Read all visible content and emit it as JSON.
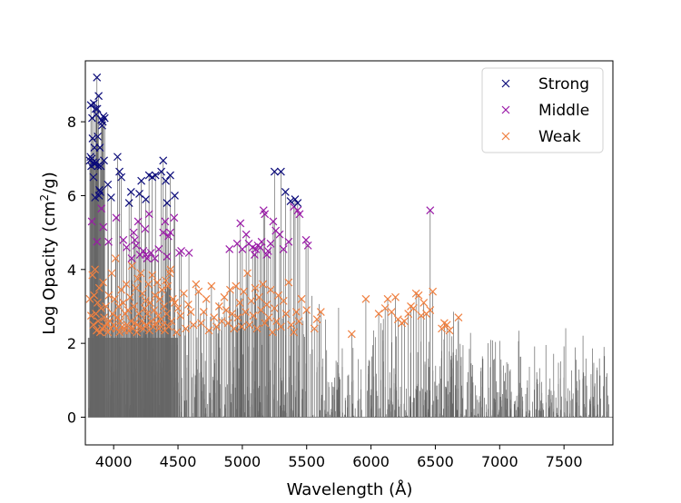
{
  "chart_data": {
    "type": "scatter",
    "title": "",
    "xlabel": "Wavelength (Å)",
    "ylabel_main": "Log Opacity (cm",
    "ylabel_sup": "2",
    "ylabel_tail": "/g)",
    "xlim": [
      3780,
      7880
    ],
    "ylim": [
      -0.75,
      9.65
    ],
    "xticks": [
      4000,
      4500,
      5000,
      5500,
      6000,
      6500,
      7000,
      7500
    ],
    "yticks": [
      0,
      2,
      4,
      6,
      8
    ],
    "legend_position": "top-right",
    "colors": {
      "strong": "#0b0b7a",
      "middle": "#9a1aa8",
      "weak": "#f08040",
      "lines": "#666666",
      "frame": "#000000"
    },
    "background_lines": {
      "description": "dense vertical gray line forest from 0 up to each line's opacity",
      "x_range": [
        3800,
        7850
      ],
      "count": 900
    },
    "series": [
      {
        "name": "Strong",
        "key": "strong",
        "marker": "x",
        "points": [
          [
            3815,
            6.95
          ],
          [
            3820,
            7.05
          ],
          [
            3823,
            8.45
          ],
          [
            3826,
            6.8
          ],
          [
            3830,
            7.0
          ],
          [
            3833,
            8.1
          ],
          [
            3836,
            7.55
          ],
          [
            3840,
            6.9
          ],
          [
            3843,
            6.5
          ],
          [
            3846,
            8.5
          ],
          [
            3850,
            7.3
          ],
          [
            3853,
            6.85
          ],
          [
            3856,
            5.95
          ],
          [
            3860,
            8.35
          ],
          [
            3863,
            6.9
          ],
          [
            3866,
            8.2
          ],
          [
            3870,
            9.2
          ],
          [
            3873,
            8.35
          ],
          [
            3876,
            7.6
          ],
          [
            3879,
            6.8
          ],
          [
            3883,
            8.7
          ],
          [
            3886,
            6.0
          ],
          [
            3889,
            6.15
          ],
          [
            3893,
            7.3
          ],
          [
            3896,
            6.1
          ],
          [
            3900,
            6.8
          ],
          [
            3905,
            8.05
          ],
          [
            3910,
            7.9
          ],
          [
            3915,
            8.0
          ],
          [
            3920,
            8.15
          ],
          [
            3925,
            6.95
          ],
          [
            3930,
            8.1
          ],
          [
            3955,
            6.3
          ],
          [
            3980,
            5.95
          ],
          [
            4030,
            7.05
          ],
          [
            4045,
            6.65
          ],
          [
            4060,
            6.5
          ],
          [
            4120,
            5.8
          ],
          [
            4135,
            6.1
          ],
          [
            4200,
            6.05
          ],
          [
            4215,
            6.4
          ],
          [
            4250,
            5.9
          ],
          [
            4275,
            6.55
          ],
          [
            4300,
            6.5
          ],
          [
            4325,
            6.55
          ],
          [
            4370,
            6.65
          ],
          [
            4385,
            6.95
          ],
          [
            4405,
            6.4
          ],
          [
            4415,
            5.8
          ],
          [
            4440,
            6.55
          ],
          [
            4475,
            6.0
          ],
          [
            5250,
            6.65
          ],
          [
            5300,
            6.65
          ],
          [
            5335,
            6.1
          ],
          [
            5375,
            5.85
          ],
          [
            5410,
            5.9
          ],
          [
            5430,
            5.8
          ]
        ]
      },
      {
        "name": "Middle",
        "key": "middle",
        "marker": "x",
        "points": [
          [
            3830,
            5.3
          ],
          [
            3870,
            4.75
          ],
          [
            3905,
            5.65
          ],
          [
            3920,
            5.15
          ],
          [
            3960,
            4.75
          ],
          [
            4020,
            5.4
          ],
          [
            4075,
            4.8
          ],
          [
            4100,
            4.6
          ],
          [
            4140,
            4.3
          ],
          [
            4155,
            5.0
          ],
          [
            4165,
            4.8
          ],
          [
            4175,
            4.65
          ],
          [
            4190,
            5.3
          ],
          [
            4205,
            4.4
          ],
          [
            4230,
            4.5
          ],
          [
            4245,
            5.1
          ],
          [
            4250,
            4.4
          ],
          [
            4260,
            4.3
          ],
          [
            4275,
            5.5
          ],
          [
            4290,
            4.45
          ],
          [
            4320,
            4.3
          ],
          [
            4350,
            4.55
          ],
          [
            4385,
            5.0
          ],
          [
            4400,
            5.3
          ],
          [
            4415,
            4.35
          ],
          [
            4425,
            4.9
          ],
          [
            4440,
            5.0
          ],
          [
            4470,
            5.4
          ],
          [
            4510,
            4.45
          ],
          [
            4525,
            4.5
          ],
          [
            4585,
            4.45
          ],
          [
            4900,
            4.55
          ],
          [
            4960,
            4.7
          ],
          [
            4985,
            5.25
          ],
          [
            5000,
            4.55
          ],
          [
            5030,
            4.95
          ],
          [
            5050,
            4.7
          ],
          [
            5080,
            4.6
          ],
          [
            5095,
            4.4
          ],
          [
            5105,
            4.55
          ],
          [
            5120,
            4.65
          ],
          [
            5140,
            4.6
          ],
          [
            5150,
            4.75
          ],
          [
            5165,
            5.6
          ],
          [
            5175,
            5.5
          ],
          [
            5190,
            4.4
          ],
          [
            5200,
            4.5
          ],
          [
            5220,
            4.7
          ],
          [
            5240,
            5.3
          ],
          [
            5260,
            5.05
          ],
          [
            5290,
            4.95
          ],
          [
            5320,
            4.55
          ],
          [
            5360,
            4.75
          ],
          [
            5400,
            5.7
          ],
          [
            5430,
            5.6
          ],
          [
            5445,
            5.5
          ],
          [
            5495,
            4.8
          ],
          [
            5510,
            4.65
          ],
          [
            6460,
            5.6
          ]
        ]
      },
      {
        "name": "Weak",
        "key": "weak",
        "marker": "x",
        "points": [
          [
            3815,
            3.2
          ],
          [
            3825,
            2.75
          ],
          [
            3835,
            3.85
          ],
          [
            3842,
            2.5
          ],
          [
            3848,
            3.3
          ],
          [
            3855,
            4.0
          ],
          [
            3862,
            2.8
          ],
          [
            3868,
            2.35
          ],
          [
            3875,
            3.1
          ],
          [
            3880,
            2.6
          ],
          [
            3888,
            3.5
          ],
          [
            3895,
            2.3
          ],
          [
            3902,
            2.95
          ],
          [
            3910,
            2.4
          ],
          [
            3918,
            3.65
          ],
          [
            3925,
            2.7
          ],
          [
            3932,
            2.45
          ],
          [
            3940,
            3.0
          ],
          [
            3948,
            2.55
          ],
          [
            3955,
            2.3
          ],
          [
            3962,
            3.3
          ],
          [
            3970,
            2.6
          ],
          [
            3978,
            2.4
          ],
          [
            3985,
            3.9
          ],
          [
            3992,
            2.8
          ],
          [
            4000,
            2.5
          ],
          [
            4008,
            3.2
          ],
          [
            4015,
            4.3
          ],
          [
            4022,
            2.4
          ],
          [
            4030,
            2.7
          ],
          [
            4038,
            3.0
          ],
          [
            4045,
            2.3
          ],
          [
            4052,
            2.6
          ],
          [
            4060,
            3.45
          ],
          [
            4068,
            2.45
          ],
          [
            4075,
            3.1
          ],
          [
            4083,
            2.35
          ],
          [
            4090,
            2.8
          ],
          [
            4098,
            3.6
          ],
          [
            4105,
            2.5
          ],
          [
            4112,
            2.9
          ],
          [
            4120,
            2.35
          ],
          [
            4128,
            3.25
          ],
          [
            4135,
            2.6
          ],
          [
            4142,
            4.1
          ],
          [
            4150,
            2.4
          ],
          [
            4158,
            3.0
          ],
          [
            4165,
            2.55
          ],
          [
            4172,
            3.5
          ],
          [
            4180,
            2.3
          ],
          [
            4188,
            3.75
          ],
          [
            4195,
            2.8
          ],
          [
            4202,
            2.45
          ],
          [
            4210,
            3.9
          ],
          [
            4218,
            2.6
          ],
          [
            4225,
            3.35
          ],
          [
            4232,
            2.4
          ],
          [
            4240,
            2.95
          ],
          [
            4248,
            3.15
          ],
          [
            4255,
            2.5
          ],
          [
            4262,
            2.8
          ],
          [
            4270,
            3.6
          ],
          [
            4278,
            2.35
          ],
          [
            4285,
            3.1
          ],
          [
            4292,
            2.6
          ],
          [
            4300,
            3.85
          ],
          [
            4308,
            2.45
          ],
          [
            4315,
            2.9
          ],
          [
            4322,
            3.3
          ],
          [
            4330,
            2.55
          ],
          [
            4338,
            3.65
          ],
          [
            4345,
            2.75
          ],
          [
            4352,
            2.4
          ],
          [
            4360,
            3.2
          ],
          [
            4368,
            2.65
          ],
          [
            4375,
            3.45
          ],
          [
            4382,
            2.5
          ],
          [
            4390,
            3.0
          ],
          [
            4398,
            2.35
          ],
          [
            4405,
            3.7
          ],
          [
            4412,
            2.8
          ],
          [
            4420,
            3.55
          ],
          [
            4428,
            2.45
          ],
          [
            4435,
            3.9
          ],
          [
            4442,
            4.0
          ],
          [
            4450,
            2.6
          ],
          [
            4460,
            3.2
          ],
          [
            4475,
            3.1
          ],
          [
            4490,
            2.3
          ],
          [
            4500,
            2.95
          ],
          [
            4520,
            2.75
          ],
          [
            4545,
            3.35
          ],
          [
            4560,
            2.4
          ],
          [
            4580,
            3.05
          ],
          [
            4600,
            2.85
          ],
          [
            4620,
            2.5
          ],
          [
            4640,
            3.6
          ],
          [
            4660,
            3.4
          ],
          [
            4680,
            2.55
          ],
          [
            4700,
            2.85
          ],
          [
            4720,
            3.2
          ],
          [
            4740,
            2.35
          ],
          [
            4760,
            3.55
          ],
          [
            4780,
            2.7
          ],
          [
            4800,
            2.45
          ],
          [
            4820,
            3.0
          ],
          [
            4840,
            2.6
          ],
          [
            4860,
            3.25
          ],
          [
            4875,
            2.9
          ],
          [
            4890,
            2.55
          ],
          [
            4905,
            3.45
          ],
          [
            4920,
            2.8
          ],
          [
            4935,
            2.4
          ],
          [
            4950,
            3.55
          ],
          [
            4965,
            2.7
          ],
          [
            4980,
            3.1
          ],
          [
            4995,
            2.45
          ],
          [
            5010,
            3.4
          ],
          [
            5025,
            2.85
          ],
          [
            5040,
            3.9
          ],
          [
            5055,
            2.5
          ],
          [
            5070,
            3.15
          ],
          [
            5085,
            2.75
          ],
          [
            5100,
            3.5
          ],
          [
            5115,
            2.4
          ],
          [
            5130,
            3.25
          ],
          [
            5145,
            2.9
          ],
          [
            5160,
            3.6
          ],
          [
            5175,
            2.55
          ],
          [
            5190,
            3.05
          ],
          [
            5205,
            2.7
          ],
          [
            5220,
            3.45
          ],
          [
            5235,
            2.3
          ],
          [
            5250,
            2.95
          ],
          [
            5265,
            2.6
          ],
          [
            5280,
            3.3
          ],
          [
            5300,
            2.45
          ],
          [
            5320,
            3.15
          ],
          [
            5340,
            2.8
          ],
          [
            5360,
            3.65
          ],
          [
            5380,
            2.5
          ],
          [
            5400,
            2.3
          ],
          [
            5420,
            2.85
          ],
          [
            5440,
            2.6
          ],
          [
            5460,
            3.2
          ],
          [
            5500,
            2.9
          ],
          [
            5560,
            2.4
          ],
          [
            5580,
            2.65
          ],
          [
            5610,
            2.85
          ],
          [
            5850,
            2.25
          ],
          [
            5960,
            3.2
          ],
          [
            6060,
            2.8
          ],
          [
            6110,
            2.95
          ],
          [
            6130,
            3.2
          ],
          [
            6160,
            2.85
          ],
          [
            6190,
            3.25
          ],
          [
            6210,
            2.65
          ],
          [
            6240,
            2.55
          ],
          [
            6260,
            2.6
          ],
          [
            6290,
            2.8
          ],
          [
            6310,
            3.0
          ],
          [
            6330,
            2.95
          ],
          [
            6350,
            3.35
          ],
          [
            6370,
            3.3
          ],
          [
            6390,
            2.75
          ],
          [
            6410,
            3.1
          ],
          [
            6430,
            2.8
          ],
          [
            6460,
            2.9
          ],
          [
            6480,
            3.4
          ],
          [
            6550,
            2.4
          ],
          [
            6570,
            2.55
          ],
          [
            6590,
            2.5
          ],
          [
            6610,
            2.35
          ],
          [
            6680,
            2.7
          ]
        ]
      }
    ]
  }
}
